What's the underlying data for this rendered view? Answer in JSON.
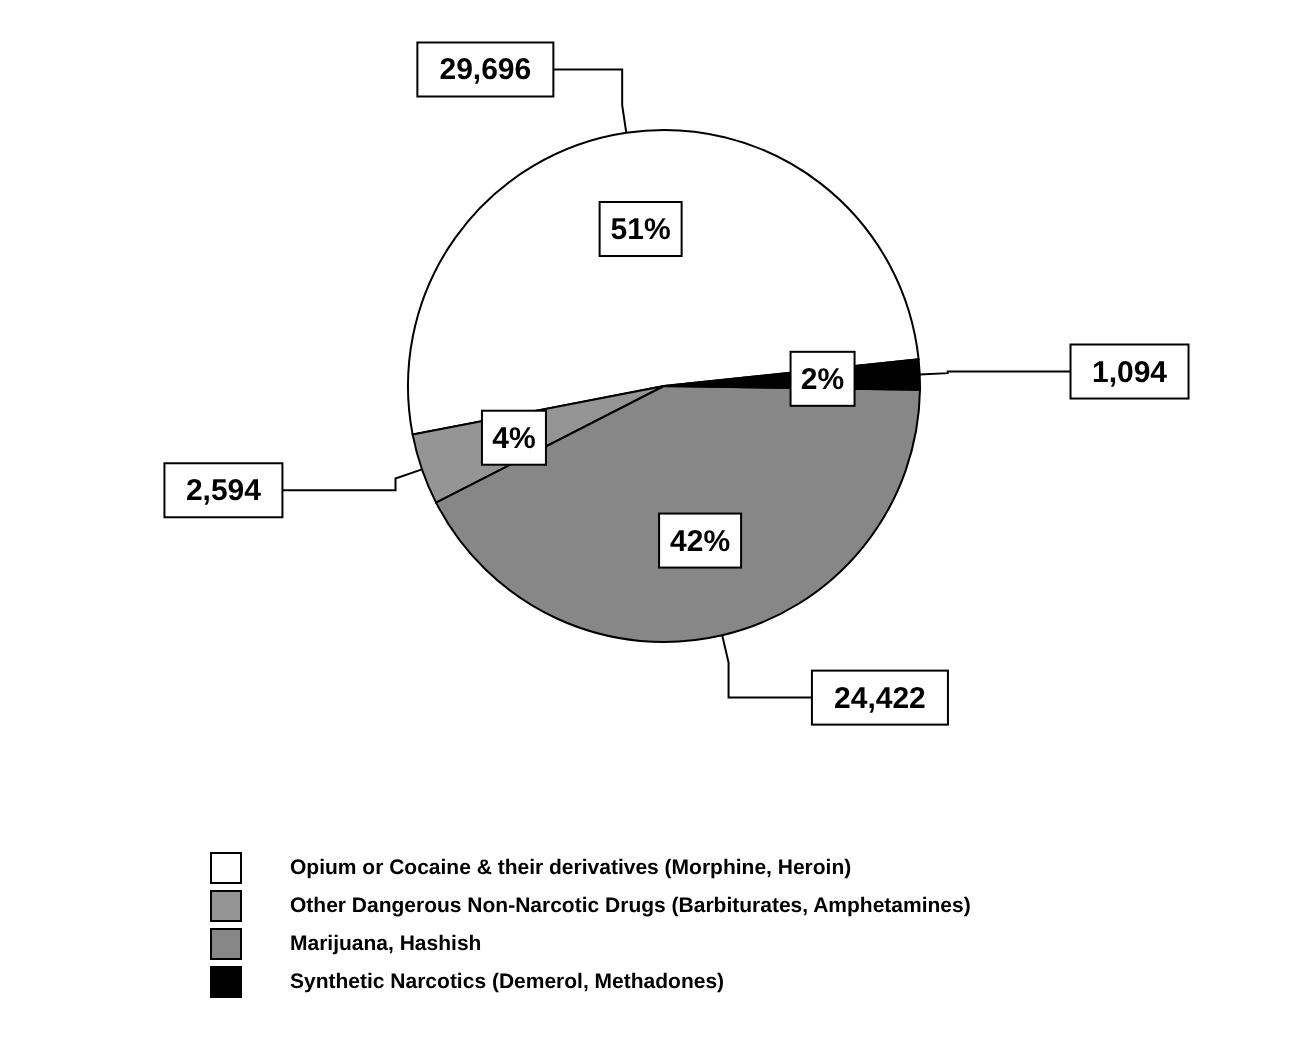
{
  "chart_data": {
    "type": "pie",
    "categories": [
      "Opium or Cocaine & their derivatives (Morphine, Heroin)",
      "Other Dangerous Non-Narcotic Drugs (Barbiturates, Amphetamines)",
      "Marijuana, Hashish",
      "Synthetic Narcotics (Demerol, Methadones)"
    ],
    "values": [
      29696,
      2594,
      24422,
      1094
    ],
    "colors": [
      "#ffffff",
      "#959595",
      "#878787",
      "#000000"
    ],
    "value_labels": [
      "29,696",
      "2,594",
      "24,422",
      "1,094"
    ],
    "annotations": [
      "51%",
      "4%",
      "42%",
      "2%"
    ],
    "legend": "bottom"
  }
}
